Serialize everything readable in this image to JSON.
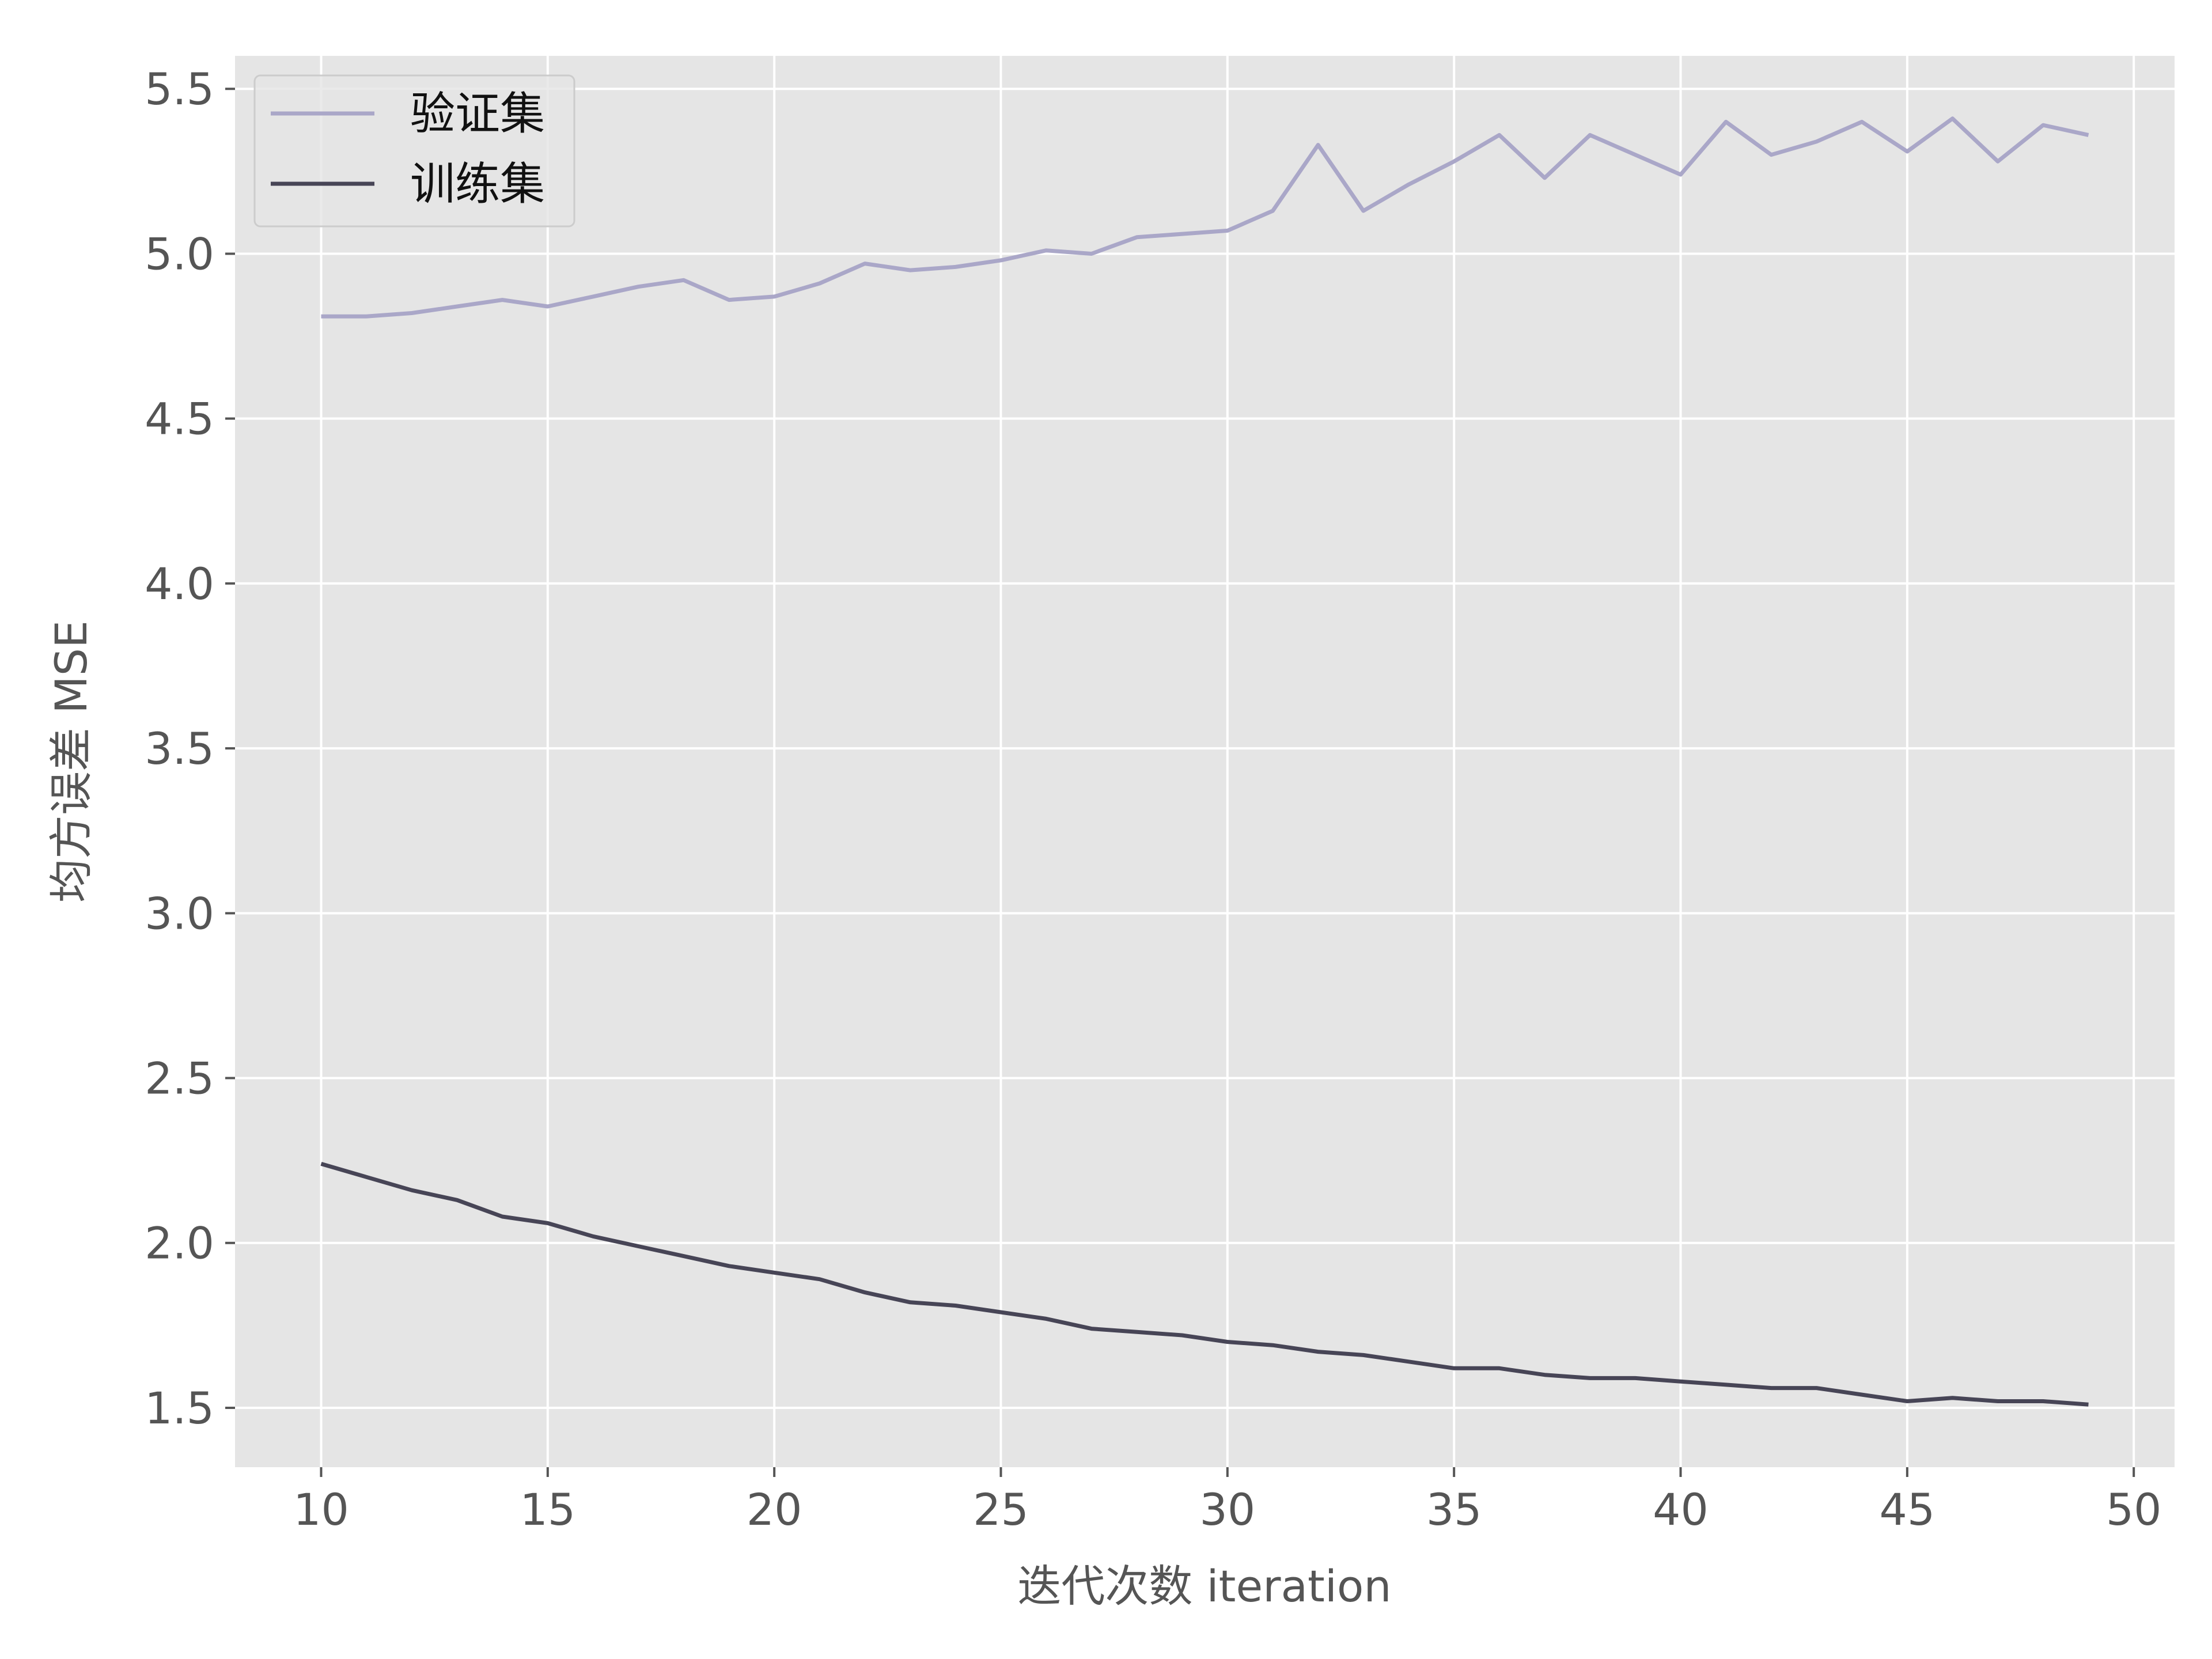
{
  "chart_data": {
    "type": "line",
    "xlabel": "迭代次数 iteration",
    "ylabel": "均方误差 MSE",
    "xlim": [
      8.1,
      50.9
    ],
    "ylim": [
      1.32,
      5.6
    ],
    "xticks": [
      "10",
      "15",
      "20",
      "25",
      "30",
      "35",
      "40",
      "45",
      "50"
    ],
    "yticks": [
      "1.5",
      "2.0",
      "2.5",
      "3.0",
      "3.5",
      "4.0",
      "4.5",
      "5.0",
      "5.5"
    ],
    "grid": true,
    "legend": "top-left",
    "x": [
      10,
      11,
      12,
      13,
      14,
      15,
      16,
      17,
      18,
      19,
      20,
      21,
      22,
      23,
      24,
      25,
      26,
      27,
      28,
      29,
      30,
      31,
      32,
      33,
      34,
      35,
      36,
      37,
      38,
      39,
      40,
      41,
      42,
      43,
      44,
      45,
      46,
      47,
      48,
      49
    ],
    "series": [
      {
        "name": "验证集",
        "color": "#aaa7c8",
        "values": [
          4.81,
          4.81,
          4.82,
          4.84,
          4.86,
          4.84,
          4.87,
          4.9,
          4.92,
          4.86,
          4.87,
          4.91,
          4.97,
          4.95,
          4.96,
          4.98,
          5.01,
          5.0,
          5.05,
          5.06,
          5.07,
          5.13,
          5.33,
          5.13,
          5.21,
          5.28,
          5.36,
          5.23,
          5.36,
          5.3,
          5.24,
          5.4,
          5.3,
          5.34,
          5.4,
          5.31,
          5.41,
          5.28,
          5.39,
          5.36
        ]
      },
      {
        "name": "训练集",
        "color": "#474556",
        "values": [
          2.24,
          2.2,
          2.16,
          2.13,
          2.08,
          2.06,
          2.02,
          1.99,
          1.96,
          1.93,
          1.91,
          1.89,
          1.85,
          1.82,
          1.81,
          1.79,
          1.77,
          1.74,
          1.73,
          1.72,
          1.7,
          1.69,
          1.67,
          1.66,
          1.64,
          1.62,
          1.62,
          1.6,
          1.59,
          1.59,
          1.58,
          1.57,
          1.56,
          1.56,
          1.54,
          1.52,
          1.53,
          1.52,
          1.52,
          1.51
        ]
      }
    ]
  }
}
